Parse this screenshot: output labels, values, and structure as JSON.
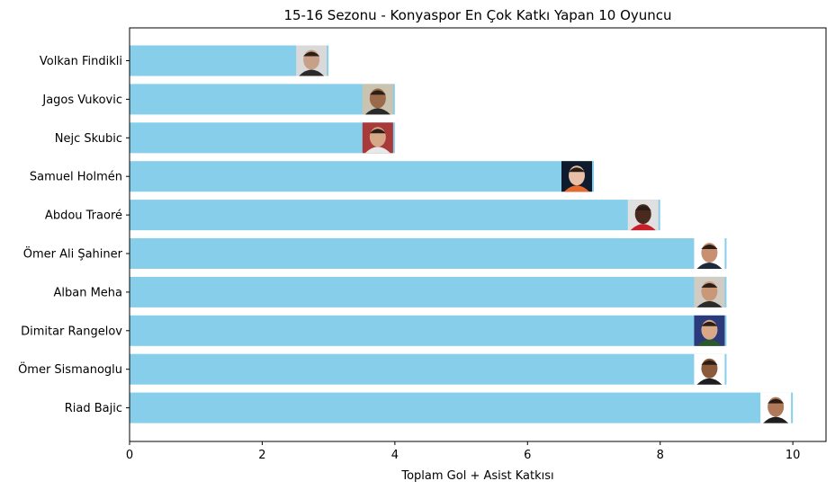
{
  "chart_data": {
    "type": "bar",
    "orientation": "horizontal",
    "title": "15-16 Sezonu - Konyaspor En Çok Katkı Yapan 10 Oyuncu",
    "xlabel": "Toplam Gol + Asist Katkısı",
    "ylabel": "",
    "categories": [
      "Volkan Findikli",
      "Jagos Vukovic",
      "Nejc Skubic",
      "Samuel Holmén",
      "Abdou Traoré",
      "Ömer Ali Şahiner",
      "Alban Meha",
      "Dimitar Rangelov",
      "Ömer Sismanoglu",
      "Riad Bajic"
    ],
    "values": [
      3,
      4,
      4,
      7,
      8,
      9,
      9,
      9,
      9,
      10
    ],
    "xlim": [
      0,
      10.5
    ],
    "xticks": [
      0,
      2,
      4,
      6,
      8,
      10
    ],
    "grid": false,
    "legend": "none",
    "bar_color": "#87ceeb",
    "photo_icons": [
      {
        "name": "player-photo-icon",
        "bg": "#d9d9d9",
        "face": "#c8a088",
        "shirt": "#2a2a2a"
      },
      {
        "name": "player-photo-icon",
        "bg": "#c9c3b0",
        "face": "#9a6a4a",
        "shirt": "#2a2a2a"
      },
      {
        "name": "player-photo-icon",
        "bg": "#a83a3a",
        "face": "#d6a888",
        "shirt": "#e8e8e8"
      },
      {
        "name": "player-photo-icon",
        "bg": "#0e1a2e",
        "face": "#e8c0a8",
        "shirt": "#e86a2a"
      },
      {
        "name": "player-photo-icon",
        "bg": "#e0e0e0",
        "face": "#4a2a1e",
        "shirt": "#c8202a"
      },
      {
        "name": "player-photo-icon",
        "bg": "#ffffff",
        "face": "#c89070",
        "shirt": "#1e2a3a"
      },
      {
        "name": "player-photo-icon",
        "bg": "#d0ccc4",
        "face": "#c89878",
        "shirt": "#2a2a2a"
      },
      {
        "name": "player-photo-icon",
        "bg": "#2a3a7a",
        "face": "#d8a888",
        "shirt": "#2a5a2a"
      },
      {
        "name": "player-photo-icon",
        "bg": "#ffffff",
        "face": "#8a5a3a",
        "shirt": "#1e1e1e"
      },
      {
        "name": "player-photo-icon",
        "bg": "#ffffff",
        "face": "#b07a5a",
        "shirt": "#1e1e1e"
      }
    ]
  }
}
